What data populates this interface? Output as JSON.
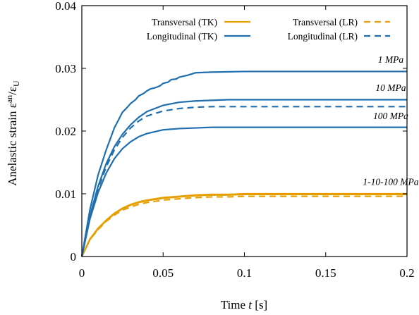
{
  "chart_data": {
    "type": "line",
    "xlabel_main": "Time",
    "xlabel_var": "t",
    "xlabel_unit": "[s]",
    "ylabel_main": "Anelastic strain",
    "ylabel_symbol": "ε",
    "ylabel_sup": "an",
    "ylabel_div": "/ε",
    "ylabel_sub": "U",
    "xlim": [
      0,
      0.2
    ],
    "ylim": [
      0,
      0.04
    ],
    "xticks": [
      0,
      0.05,
      0.1,
      0.15,
      0.2
    ],
    "xtick_labels": [
      "0",
      "0.05",
      "0.1",
      "0.15",
      "0.2"
    ],
    "yticks": [
      0,
      0.01,
      0.02,
      0.03,
      0.04
    ],
    "ytick_labels": [
      "0",
      "0.01",
      "0.02",
      "0.03",
      "0.04"
    ],
    "grid": false,
    "legend_position": "top",
    "colors": {
      "transversal": "#e69f00",
      "longitudinal": "#1f6fb0"
    },
    "series": [
      {
        "name": "Transversal (TK)",
        "group": "transversal",
        "dash": "solid",
        "x": [
          0,
          0.005,
          0.01,
          0.015,
          0.02,
          0.025,
          0.03,
          0.035,
          0.04,
          0.05,
          0.06,
          0.07,
          0.08,
          0.09,
          0.1,
          0.12,
          0.14,
          0.16,
          0.18,
          0.2
        ],
        "y": [
          0,
          0.0028,
          0.0045,
          0.0058,
          0.0069,
          0.0077,
          0.0083,
          0.0087,
          0.009,
          0.0094,
          0.0096,
          0.0098,
          0.0099,
          0.0099,
          0.01,
          0.01,
          0.01,
          0.01,
          0.01,
          0.01
        ]
      },
      {
        "name": "Transversal (TK)",
        "group": "transversal",
        "dash": "solid",
        "x": [
          0,
          0.005,
          0.01,
          0.015,
          0.02,
          0.025,
          0.03,
          0.035,
          0.04,
          0.05,
          0.06,
          0.07,
          0.08,
          0.09,
          0.1,
          0.12,
          0.14,
          0.16,
          0.18,
          0.2
        ],
        "y": [
          0,
          0.0027,
          0.0044,
          0.0057,
          0.0068,
          0.0076,
          0.0082,
          0.0086,
          0.0089,
          0.0093,
          0.0095,
          0.0097,
          0.0098,
          0.0098,
          0.0099,
          0.0099,
          0.0099,
          0.0099,
          0.0099,
          0.0099
        ]
      },
      {
        "name": "Transversal (LR)",
        "group": "transversal",
        "dash": "dashed",
        "x": [
          0,
          0.005,
          0.01,
          0.015,
          0.02,
          0.025,
          0.03,
          0.035,
          0.04,
          0.05,
          0.06,
          0.07,
          0.08,
          0.09,
          0.1,
          0.12,
          0.14,
          0.16,
          0.18,
          0.2
        ],
        "y": [
          0,
          0.0027,
          0.0043,
          0.0056,
          0.0066,
          0.0074,
          0.0079,
          0.0083,
          0.0086,
          0.009,
          0.0092,
          0.0094,
          0.0095,
          0.0095,
          0.0096,
          0.0096,
          0.0096,
          0.0096,
          0.0096,
          0.0096
        ]
      },
      {
        "name": "Longitudinal (TK)",
        "group": "longitudinal",
        "dash": "solid",
        "x": [
          0,
          0.005,
          0.01,
          0.015,
          0.02,
          0.025,
          0.028,
          0.03,
          0.033,
          0.035,
          0.038,
          0.04,
          0.042,
          0.045,
          0.048,
          0.05,
          0.053,
          0.055,
          0.058,
          0.06,
          0.065,
          0.07,
          0.08,
          0.1,
          0.12,
          0.14,
          0.16,
          0.18,
          0.2
        ],
        "y": [
          0,
          0.0075,
          0.013,
          0.017,
          0.0205,
          0.023,
          0.0238,
          0.0244,
          0.025,
          0.0256,
          0.026,
          0.0264,
          0.0267,
          0.0269,
          0.0272,
          0.0276,
          0.0278,
          0.0282,
          0.0283,
          0.0286,
          0.0289,
          0.0293,
          0.0294,
          0.0295,
          0.0295,
          0.0295,
          0.0295,
          0.0295,
          0.0295
        ]
      },
      {
        "name": "Longitudinal (TK)",
        "group": "longitudinal",
        "dash": "solid",
        "x": [
          0,
          0.005,
          0.01,
          0.015,
          0.02,
          0.025,
          0.03,
          0.035,
          0.04,
          0.05,
          0.06,
          0.07,
          0.08,
          0.09,
          0.1,
          0.12,
          0.14,
          0.16,
          0.18,
          0.2
        ],
        "y": [
          0,
          0.0065,
          0.0112,
          0.0148,
          0.0175,
          0.0195,
          0.021,
          0.0222,
          0.0231,
          0.0241,
          0.0246,
          0.0248,
          0.0249,
          0.025,
          0.025,
          0.025,
          0.025,
          0.025,
          0.025,
          0.025
        ]
      },
      {
        "name": "Longitudinal (LR)",
        "group": "longitudinal",
        "dash": "dashed",
        "x": [
          0,
          0.005,
          0.01,
          0.015,
          0.02,
          0.025,
          0.03,
          0.035,
          0.04,
          0.05,
          0.06,
          0.07,
          0.08,
          0.09,
          0.1,
          0.12,
          0.14,
          0.16,
          0.18,
          0.2
        ],
        "y": [
          0,
          0.0062,
          0.0108,
          0.0143,
          0.017,
          0.019,
          0.0205,
          0.0216,
          0.0224,
          0.0232,
          0.0236,
          0.0238,
          0.0239,
          0.0239,
          0.0239,
          0.0239,
          0.0239,
          0.0239,
          0.0239,
          0.0239
        ]
      },
      {
        "name": "Longitudinal (TK)",
        "group": "longitudinal",
        "dash": "solid",
        "x": [
          0,
          0.005,
          0.01,
          0.015,
          0.02,
          0.025,
          0.03,
          0.035,
          0.04,
          0.05,
          0.06,
          0.07,
          0.08,
          0.09,
          0.1,
          0.12,
          0.14,
          0.16,
          0.18,
          0.2
        ],
        "y": [
          0,
          0.006,
          0.0102,
          0.0133,
          0.0156,
          0.0172,
          0.0183,
          0.0191,
          0.0196,
          0.0202,
          0.0204,
          0.0205,
          0.0206,
          0.0206,
          0.0206,
          0.0206,
          0.0206,
          0.0206,
          0.0206,
          0.0206
        ]
      }
    ],
    "legend": [
      {
        "label": "Transversal (TK)",
        "group": "transversal",
        "dash": "solid"
      },
      {
        "label": "Transversal (LR)",
        "group": "transversal",
        "dash": "dashed"
      },
      {
        "label": "Longitudinal (TK)",
        "group": "longitudinal",
        "dash": "solid"
      },
      {
        "label": "Longitudinal (LR)",
        "group": "longitudinal",
        "dash": "dashed"
      }
    ],
    "annotations": [
      {
        "text": "1 MPa",
        "x": 0.19,
        "y": 0.0309
      },
      {
        "text": "10 MPa",
        "x": 0.19,
        "y": 0.0264
      },
      {
        "text": "100 MPa",
        "x": 0.19,
        "y": 0.0219
      },
      {
        "text": "1-10-100 MPa",
        "x": 0.19,
        "y": 0.0114
      }
    ]
  }
}
